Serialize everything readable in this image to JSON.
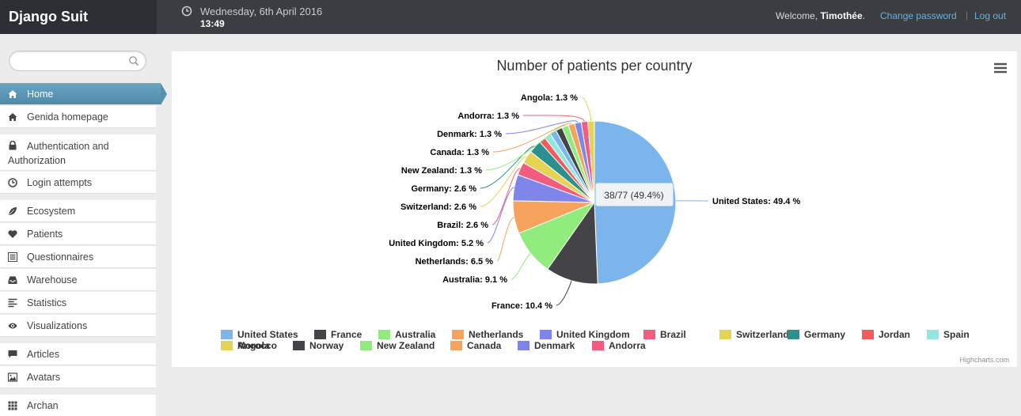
{
  "header": {
    "brand": "Django Suit",
    "date": "Wednesday, 6th April 2016",
    "time": "13:49",
    "welcome_prefix": "Welcome,",
    "username": "Timothée",
    "welcome_suffix": ".",
    "change_password": "Change password",
    "separator": "|",
    "logout": "Log out"
  },
  "sidebar": {
    "search_placeholder": "",
    "items": [
      {
        "label": "Home",
        "icon": "home-icon",
        "active": true
      },
      {
        "label": "Genida homepage",
        "icon": "home-icon"
      },
      {
        "label": "Authentication and Authorization",
        "icon": "lock-icon"
      },
      {
        "label": "Login attempts",
        "icon": "clock-icon"
      },
      {
        "label": "Ecosystem",
        "icon": "leaf-icon"
      },
      {
        "label": "Patients",
        "icon": "heart-icon"
      },
      {
        "label": "Questionnaires",
        "icon": "list-icon"
      },
      {
        "label": "Warehouse",
        "icon": "inbox-icon"
      },
      {
        "label": "Statistics",
        "icon": "align-left-icon"
      },
      {
        "label": "Visualizations",
        "icon": "eye-icon"
      },
      {
        "label": "Articles",
        "icon": "comment-icon"
      },
      {
        "label": "Avatars",
        "icon": "picture-icon"
      },
      {
        "label": "Archan",
        "icon": "grid-icon"
      }
    ]
  },
  "chart_data": {
    "type": "pie",
    "title": "Number of patients per country",
    "total": 77,
    "tooltip": "38/77 (49.4%)",
    "credits": "Highcharts.com",
    "slices": [
      {
        "name": "United States",
        "value": 38,
        "label": "United States: 49.4 %",
        "color": "#7cb5ec"
      },
      {
        "name": "France",
        "value": 8,
        "label": "France: 10.4 %",
        "color": "#434348"
      },
      {
        "name": "Australia",
        "value": 7,
        "label": "Australia: 9.1 %",
        "color": "#90ed7d"
      },
      {
        "name": "Netherlands",
        "value": 5,
        "label": "Netherlands: 6.5 %",
        "color": "#f7a35c"
      },
      {
        "name": "United Kingdom",
        "value": 4,
        "label": "United Kingdom: 5.2 %",
        "color": "#8085e9"
      },
      {
        "name": "Brazil",
        "value": 2,
        "label": "Brazil: 2.6 %",
        "color": "#f15c80"
      },
      {
        "name": "Switzerland",
        "value": 2,
        "label": "Switzerland: 2.6 %",
        "color": "#e4d354"
      },
      {
        "name": "Germany",
        "value": 2,
        "label": "Germany: 2.6 %",
        "color": "#2b908f"
      },
      {
        "name": "Jordan",
        "value": 1,
        "label": "",
        "color": "#f45b5b"
      },
      {
        "name": "Spain",
        "value": 1,
        "label": "",
        "color": "#91e8e1"
      },
      {
        "name": "Morocco",
        "value": 1,
        "label": "",
        "color": "#7cb5ec"
      },
      {
        "name": "Norway",
        "value": 1,
        "label": "",
        "color": "#434348"
      },
      {
        "name": "New Zealand",
        "value": 1,
        "label": "New Zealand: 1.3 %",
        "color": "#90ed7d"
      },
      {
        "name": "Canada",
        "value": 1,
        "label": "Canada: 1.3 %",
        "color": "#f7a35c"
      },
      {
        "name": "Denmark",
        "value": 1,
        "label": "Denmark: 1.3 %",
        "color": "#8085e9"
      },
      {
        "name": "Andorra",
        "value": 1,
        "label": "Andorra: 1.3 %",
        "color": "#f15c80"
      },
      {
        "name": "Angola",
        "value": 1,
        "label": "Angola: 1.3 %",
        "color": "#e4d354"
      }
    ]
  }
}
